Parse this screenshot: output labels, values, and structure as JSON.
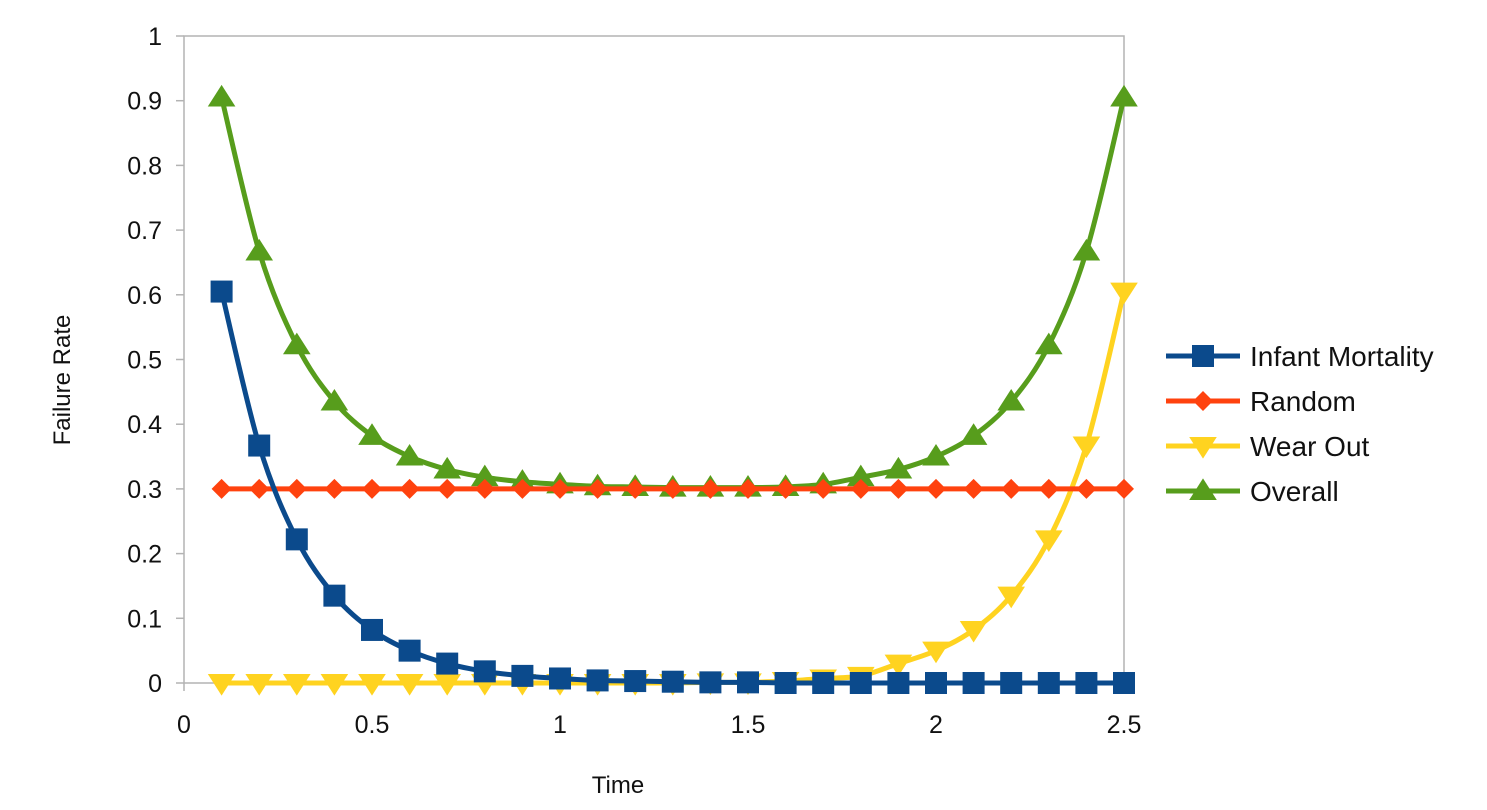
{
  "chart_data": {
    "type": "line",
    "title": "",
    "xlabel": "Time",
    "ylabel": "Failure Rate",
    "xlim": [
      0,
      2.5
    ],
    "ylim": [
      0,
      1
    ],
    "xticks": [
      "0",
      "0.5",
      "1",
      "1.5",
      "2",
      "2.5"
    ],
    "yticks": [
      "0",
      "0.1",
      "0.2",
      "0.3",
      "0.4",
      "0.5",
      "0.6",
      "0.7",
      "0.8",
      "0.9",
      "1"
    ],
    "x": [
      0.1,
      0.2,
      0.3,
      0.4,
      0.5,
      0.6,
      0.7,
      0.8,
      0.9,
      1.0,
      1.1,
      1.2,
      1.3,
      1.4,
      1.5,
      1.6,
      1.7,
      1.8,
      1.9,
      2.0,
      2.1,
      2.2,
      2.3,
      2.4,
      2.5
    ],
    "grid": false,
    "legend_position": "right",
    "series": [
      {
        "name": "Infant Mortality",
        "color": "#0b4a8c",
        "marker": "square",
        "values": [
          0.605,
          0.367,
          0.222,
          0.135,
          0.082,
          0.05,
          0.03,
          0.018,
          0.011,
          0.007,
          0.004,
          0.003,
          0.002,
          0.001,
          0.001,
          0.0,
          0.0,
          0.0,
          0.0,
          0.0,
          0.0,
          0.0,
          0.0,
          0.0,
          0.0
        ]
      },
      {
        "name": "Random",
        "color": "#ff420e",
        "marker": "diamond",
        "values": [
          0.3,
          0.3,
          0.3,
          0.3,
          0.3,
          0.3,
          0.3,
          0.3,
          0.3,
          0.3,
          0.3,
          0.3,
          0.3,
          0.3,
          0.3,
          0.3,
          0.3,
          0.3,
          0.3,
          0.3,
          0.3,
          0.3,
          0.3,
          0.3,
          0.3
        ]
      },
      {
        "name": "Wear Out",
        "color": "#ffd320",
        "marker": "triangle-down",
        "values": [
          0.0,
          0.0,
          0.0,
          0.0,
          0.0,
          0.0,
          0.0,
          0.0,
          0.0,
          0.0,
          0.0,
          0.0,
          0.0,
          0.001,
          0.001,
          0.003,
          0.007,
          0.011,
          0.03,
          0.05,
          0.082,
          0.135,
          0.222,
          0.367,
          0.605
        ]
      },
      {
        "name": "Overall",
        "color": "#579d1c",
        "marker": "triangle-up",
        "values": [
          0.905,
          0.667,
          0.522,
          0.435,
          0.382,
          0.35,
          0.33,
          0.318,
          0.311,
          0.307,
          0.304,
          0.303,
          0.302,
          0.302,
          0.302,
          0.303,
          0.307,
          0.318,
          0.33,
          0.35,
          0.382,
          0.435,
          0.522,
          0.667,
          0.905
        ]
      }
    ]
  }
}
